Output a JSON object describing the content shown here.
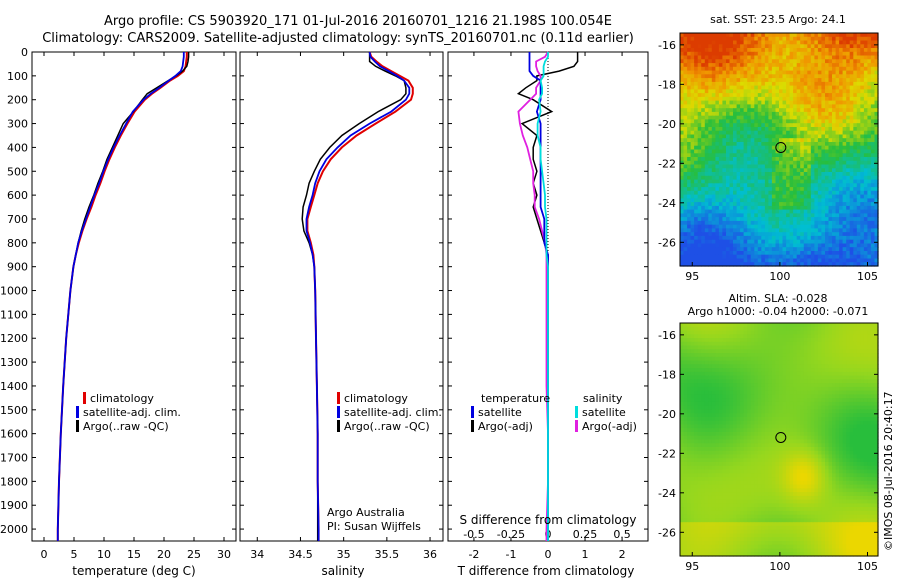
{
  "header": {
    "line1": "Argo profile: CS 5903920_171 01-Jul-2016 20160701_1216 21.198S 100.054E",
    "line2": "Climatology: CARS2009. Satellite-adjusted climatology: synTS_20160701.nc (0.11d earlier)"
  },
  "colors": {
    "climatology": "#e00000",
    "satellite": "#0000e0",
    "argo": "#000000",
    "sal_satellite": "#00dddd",
    "sal_argo": "#e020e0"
  },
  "axes": {
    "depth_ticks": [
      "0",
      "100",
      "200",
      "300",
      "400",
      "500",
      "600",
      "700",
      "800",
      "900",
      "1000",
      "1100",
      "1200",
      "1300",
      "1400",
      "1500",
      "1600",
      "1700",
      "1800",
      "1900",
      "2000"
    ],
    "temp_ticks": [
      "0",
      "5",
      "10",
      "15",
      "20",
      "25",
      "30"
    ],
    "sal_ticks": [
      "34",
      "34.5",
      "35",
      "35.5",
      "36"
    ],
    "diff_t_ticks": [
      "-2",
      "-1",
      "0",
      "1",
      "2"
    ],
    "diff_s_ticks": [
      "-0.5",
      "-0.25",
      "0",
      "0.25",
      "0.5"
    ],
    "map_x_ticks": [
      "95",
      "100",
      "105"
    ],
    "map_y_ticks": [
      "-16",
      "-18",
      "-20",
      "-22",
      "-24",
      "-26"
    ]
  },
  "panels": {
    "temperature": {
      "xlabel": "temperature (deg C)",
      "legend": [
        "climatology",
        "satellite-adj. clim.",
        "Argo(..raw -QC)"
      ]
    },
    "salinity": {
      "xlabel": "salinity",
      "legend": [
        "climatology",
        "satellite-adj. clim.",
        "Argo(..raw -QC)"
      ],
      "note1": "Argo Australia",
      "note2": "PI: Susan Wijffels"
    },
    "difference": {
      "xlabel": "T difference from climatology",
      "xlabel_top": "S difference from climatology",
      "legend_t_title": "temperature",
      "legend_s_title": "salinity",
      "legend_t": [
        "satellite",
        "Argo(-adj)"
      ],
      "legend_s": [
        "satellite",
        "Argo(-adj)"
      ]
    },
    "sst_map": {
      "title": "sat. SST: 23.5 Argo: 24.1"
    },
    "sla_map": {
      "title1": "Altim. SLA: -0.028",
      "title2": "Argo h1000: -0.04 h2000: -0.071"
    },
    "credit": "©IMOS 08-Jul-2016 20:40:17"
  },
  "chart_data": [
    {
      "type": "line",
      "xlabel": "temperature (deg C)",
      "xlim": [
        -2,
        32
      ],
      "ylim": [
        2050,
        0
      ],
      "depth": [
        0,
        20,
        40,
        60,
        80,
        100,
        120,
        150,
        175,
        200,
        250,
        300,
        350,
        400,
        450,
        500,
        550,
        600,
        650,
        700,
        750,
        800,
        850,
        900,
        1000,
        1200,
        1400,
        1600,
        1800,
        2000,
        2050
      ],
      "series": [
        {
          "name": "climatology",
          "values": [
            23.8,
            23.8,
            23.7,
            23.6,
            23.3,
            22.3,
            21.0,
            19.4,
            18.0,
            16.8,
            15.1,
            13.9,
            12.8,
            11.8,
            10.9,
            10.1,
            9.4,
            8.6,
            7.9,
            7.1,
            6.4,
            5.8,
            5.3,
            4.9,
            4.4,
            3.7,
            3.2,
            2.8,
            2.5,
            2.3,
            2.3
          ]
        },
        {
          "name": "satellite-adj. clim.",
          "values": [
            23.3,
            23.3,
            23.2,
            23.1,
            22.8,
            21.9,
            20.8,
            19.2,
            17.8,
            16.6,
            14.8,
            13.7,
            12.6,
            11.6,
            10.7,
            9.9,
            9.2,
            8.4,
            7.7,
            7.0,
            6.3,
            5.7,
            5.3,
            4.9,
            4.4,
            3.7,
            3.2,
            2.8,
            2.5,
            2.3,
            2.3
          ]
        },
        {
          "name": "Argo(..raw -QC)",
          "values": [
            24.1,
            24.1,
            24.0,
            23.8,
            23.1,
            22.0,
            20.7,
            18.8,
            17.2,
            16.4,
            14.9,
            13.2,
            12.3,
            11.4,
            10.5,
            9.8,
            9.0,
            8.3,
            7.5,
            6.8,
            6.2,
            5.7,
            5.3,
            4.9,
            4.4,
            3.7,
            3.2,
            2.8,
            2.5,
            2.3,
            2.3
          ]
        }
      ]
    },
    {
      "type": "line",
      "xlabel": "salinity",
      "xlim": [
        33.8,
        36.15
      ],
      "ylim": [
        2050,
        0
      ],
      "depth": [
        0,
        20,
        40,
        60,
        80,
        100,
        120,
        150,
        175,
        200,
        250,
        300,
        350,
        400,
        450,
        500,
        550,
        600,
        650,
        700,
        750,
        800,
        850,
        900,
        1000,
        1200,
        1400,
        1600,
        1800,
        2000,
        2050
      ],
      "series": [
        {
          "name": "climatology",
          "values": [
            35.3,
            35.32,
            35.38,
            35.45,
            35.55,
            35.65,
            35.75,
            35.8,
            35.8,
            35.78,
            35.6,
            35.37,
            35.15,
            34.98,
            34.85,
            34.76,
            34.7,
            34.66,
            34.62,
            34.58,
            34.58,
            34.62,
            34.65,
            34.66,
            34.67,
            34.68,
            34.69,
            34.7,
            34.7,
            34.71,
            34.71
          ]
        },
        {
          "name": "satellite-adj. clim.",
          "values": [
            35.3,
            35.31,
            35.36,
            35.42,
            35.52,
            35.62,
            35.7,
            35.76,
            35.76,
            35.72,
            35.55,
            35.3,
            35.08,
            34.93,
            34.8,
            34.72,
            34.67,
            34.64,
            34.6,
            34.57,
            34.57,
            34.61,
            34.64,
            34.66,
            34.67,
            34.68,
            34.69,
            34.7,
            34.7,
            34.71,
            34.71
          ]
        },
        {
          "name": "Argo(..raw -QC)",
          "values": [
            35.3,
            35.3,
            35.3,
            35.37,
            35.48,
            35.6,
            35.7,
            35.72,
            35.72,
            35.66,
            35.4,
            35.18,
            34.98,
            34.84,
            34.73,
            34.66,
            34.6,
            34.57,
            34.53,
            34.52,
            34.54,
            34.6,
            34.64,
            34.66,
            34.67,
            34.68,
            34.69,
            34.7,
            34.7,
            34.7,
            34.7
          ]
        }
      ]
    },
    {
      "type": "line",
      "xlabel": "T difference from climatology",
      "xlim": [
        -2.7,
        2.7
      ],
      "ylim": [
        2050,
        0
      ],
      "depth": [
        0,
        20,
        40,
        60,
        80,
        100,
        120,
        150,
        175,
        200,
        250,
        300,
        350,
        400,
        450,
        500,
        550,
        600,
        650,
        700,
        750,
        800,
        850,
        900,
        1000,
        1200,
        1400,
        1600,
        1800,
        2000,
        2050
      ],
      "series": [
        {
          "name": "temperature satellite",
          "values": [
            -0.5,
            -0.5,
            -0.5,
            -0.5,
            -0.5,
            -0.4,
            -0.2,
            -0.2,
            -0.2,
            -0.2,
            -0.3,
            -0.2,
            -0.2,
            -0.2,
            -0.2,
            -0.2,
            -0.2,
            -0.2,
            -0.2,
            -0.1,
            -0.1,
            -0.1,
            0,
            0,
            0,
            0,
            0,
            0,
            0,
            0,
            0
          ]
        },
        {
          "name": "temperature Argo(-adj)",
          "values": [
            0.8,
            0.8,
            0.8,
            0.7,
            0.3,
            -0.3,
            -0.3,
            -0.6,
            -0.8,
            -0.4,
            0.1,
            -0.7,
            -0.3,
            -0.4,
            -0.4,
            -0.3,
            -0.4,
            -0.3,
            -0.4,
            -0.3,
            -0.2,
            -0.1,
            0,
            0,
            0,
            0,
            0,
            0,
            0,
            0,
            0
          ]
        }
      ]
    },
    {
      "type": "line",
      "xlabel": "S difference from climatology",
      "xlim": [
        -0.675,
        0.675
      ],
      "ylim": [
        2050,
        0
      ],
      "depth": [
        0,
        20,
        40,
        60,
        80,
        100,
        120,
        150,
        175,
        200,
        250,
        300,
        350,
        400,
        450,
        500,
        550,
        600,
        650,
        700,
        750,
        800,
        850,
        900,
        1000,
        1200,
        1400,
        1600,
        1800,
        2000,
        2050
      ],
      "series": [
        {
          "name": "salinity satellite",
          "values": [
            0,
            0,
            -0.02,
            -0.03,
            -0.03,
            -0.03,
            -0.05,
            -0.04,
            -0.04,
            -0.06,
            -0.05,
            -0.07,
            -0.07,
            -0.05,
            -0.05,
            -0.04,
            -0.03,
            -0.02,
            -0.02,
            -0.01,
            -0.01,
            -0.01,
            -0.01,
            0,
            0,
            0,
            0,
            0,
            0,
            0,
            0
          ]
        },
        {
          "name": "salinity Argo(-adj)",
          "values": [
            0,
            -0.02,
            -0.08,
            -0.08,
            -0.07,
            -0.05,
            -0.05,
            -0.08,
            -0.08,
            -0.12,
            -0.2,
            -0.19,
            -0.17,
            -0.14,
            -0.12,
            -0.1,
            -0.1,
            -0.09,
            -0.09,
            -0.06,
            -0.04,
            -0.02,
            -0.01,
            -0.01,
            -0.01,
            -0.01,
            -0.01,
            0,
            0,
            -0.01,
            -0.01
          ]
        }
      ]
    }
  ]
}
